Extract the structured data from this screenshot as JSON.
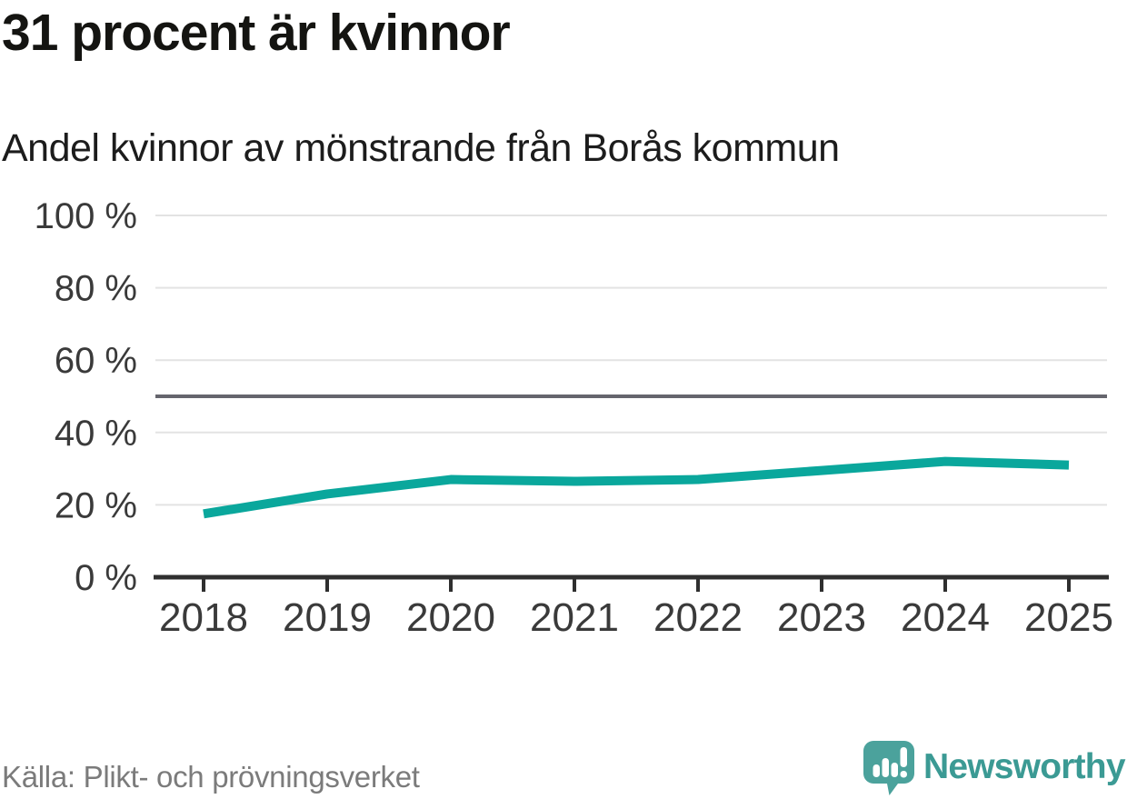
{
  "header": {
    "title": "31 procent är kvinnor",
    "subtitle": "Andel kvinnor av mönstrande från Borås kommun"
  },
  "footer": {
    "source": "Källa: Plikt- och prövningsverket",
    "brand": "Newsworthy"
  },
  "colors": {
    "line": "#0aa79c",
    "grid": "#e3e3e3",
    "reference_line": "#65656d",
    "axis": "#2f2f2f",
    "tick_label": "#3a3a3a",
    "title": "#141411",
    "subtitle": "#1c1c1c",
    "source": "#7b7b7b",
    "brand_text": "#3b9a94",
    "logo_icon": "#4ba29c"
  },
  "chart_data": {
    "type": "line",
    "title": "31 procent är kvinnor",
    "subtitle": "Andel kvinnor av mönstrande från Borås kommun",
    "x": [
      "2018",
      "2019",
      "2020",
      "2021",
      "2022",
      "2023",
      "2024",
      "2025"
    ],
    "series": [
      {
        "name": "Andel kvinnor av mönstrande",
        "values": [
          17.5,
          23,
          27,
          26.5,
          27,
          29.5,
          32,
          31
        ]
      }
    ],
    "xlabel": "",
    "ylabel": "",
    "ylim": [
      0,
      100
    ],
    "yticks": [
      0,
      20,
      40,
      60,
      80,
      100
    ],
    "ytick_format": "{v} %",
    "reference_line": 50,
    "grid": "horizontal",
    "legend": "none",
    "unit": "%"
  }
}
